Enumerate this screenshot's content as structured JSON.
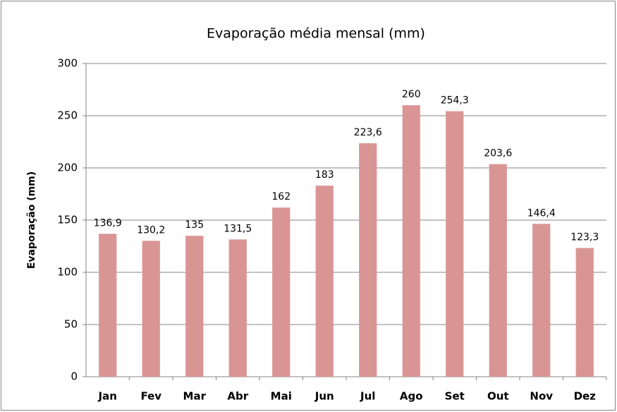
{
  "chart_data": {
    "type": "bar",
    "title": "Evaporação média mensal (mm)",
    "y_label": "Evaporação (mm)",
    "categories": [
      "Jan",
      "Fev",
      "Mar",
      "Abr",
      "Mai",
      "Jun",
      "Jul",
      "Ago",
      "Set",
      "Out",
      "Nov",
      "Dez"
    ],
    "values": [
      136.9,
      130.2,
      135,
      131.5,
      162,
      183,
      223.6,
      260,
      254.3,
      203.6,
      146.4,
      123.3
    ],
    "value_labels": [
      "136,9",
      "130,2",
      "135",
      "131,5",
      "162",
      "183",
      "223,6",
      "260",
      "254,3",
      "203,6",
      "146,4",
      "123,3"
    ],
    "color": "#d99594",
    "ylim": [
      0,
      300
    ],
    "yticks": [
      0,
      50,
      100,
      150,
      200,
      250,
      300
    ],
    "grid": true
  }
}
